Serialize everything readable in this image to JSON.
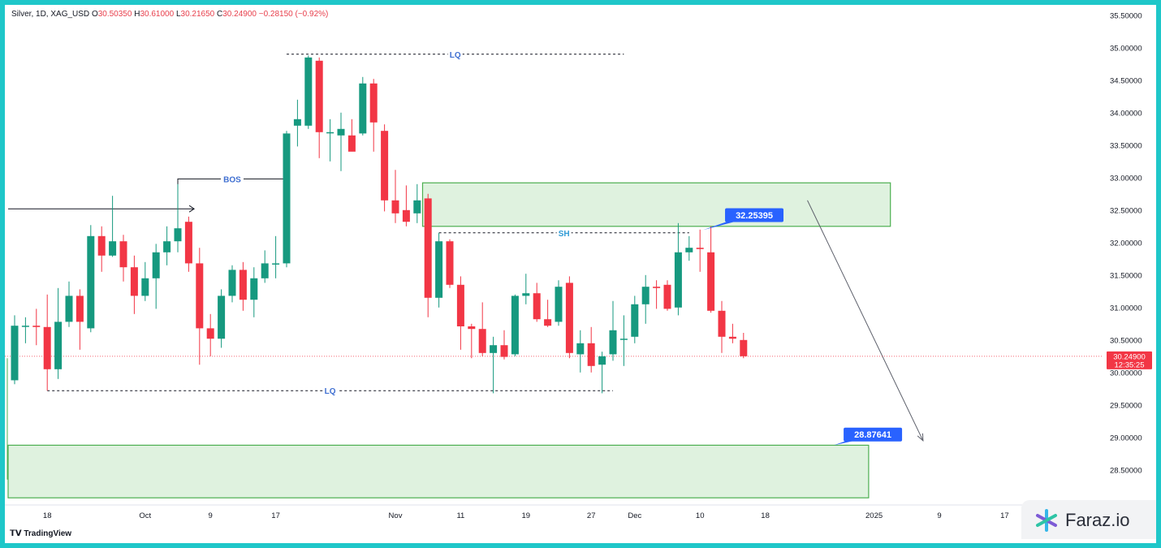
{
  "header": {
    "symbol": "Silver, 1D, XAG_USD",
    "open_label": "O",
    "open": "30.50350",
    "high_label": "H",
    "high": "30.61000",
    "low_label": "L",
    "low": "30.21650",
    "close_label": "C",
    "close": "30.24900",
    "change": "−0.28150 (−0.92%)"
  },
  "branding": {
    "tradingview": "TradingView",
    "watermark": "Faraz.io"
  },
  "colors": {
    "up": "#16997f",
    "down": "#f23645",
    "zone_fill": "#dff2df",
    "zone_border": "#4caf50",
    "label_bg": "#2962ff",
    "price_line": "#f23645"
  },
  "chart_data": {
    "type": "candlestick",
    "yaxis": {
      "min": 28.3,
      "max": 35.6,
      "ticks": [
        "35.50000",
        "35.00000",
        "34.50000",
        "34.00000",
        "33.50000",
        "33.00000",
        "32.50000",
        "32.00000",
        "31.50000",
        "31.00000",
        "30.50000",
        "30.00000",
        "29.50000",
        "29.00000",
        "28.50000"
      ]
    },
    "xaxis": {
      "ticks": [
        {
          "label": "18",
          "i": 3
        },
        {
          "label": "Oct",
          "i": 12
        },
        {
          "label": "9",
          "i": 18
        },
        {
          "label": "17",
          "i": 24
        },
        {
          "label": "Nov",
          "i": 35
        },
        {
          "label": "11",
          "i": 41
        },
        {
          "label": "19",
          "i": 47
        },
        {
          "label": "27",
          "i": 53
        },
        {
          "label": "Dec",
          "i": 57
        },
        {
          "label": "10",
          "i": 63
        },
        {
          "label": "18",
          "i": 69
        },
        {
          "label": "2025",
          "i": 79
        },
        {
          "label": "9",
          "i": 85
        },
        {
          "label": "17",
          "i": 91
        }
      ]
    },
    "candles": [
      {
        "o": 29.88,
        "h": 30.88,
        "l": 29.82,
        "c": 30.72
      },
      {
        "o": 30.72,
        "h": 30.85,
        "l": 30.45,
        "c": 30.72
      },
      {
        "o": 30.72,
        "h": 30.98,
        "l": 30.42,
        "c": 30.7
      },
      {
        "o": 30.7,
        "h": 31.2,
        "l": 29.72,
        "c": 30.05
      },
      {
        "o": 30.05,
        "h": 31.3,
        "l": 29.9,
        "c": 30.78
      },
      {
        "o": 30.78,
        "h": 31.4,
        "l": 30.7,
        "c": 31.18
      },
      {
        "o": 31.18,
        "h": 31.28,
        "l": 30.35,
        "c": 30.78
      },
      {
        "o": 30.68,
        "h": 32.27,
        "l": 30.62,
        "c": 32.1
      },
      {
        "o": 32.1,
        "h": 32.25,
        "l": 31.55,
        "c": 31.8
      },
      {
        "o": 31.8,
        "h": 32.72,
        "l": 31.78,
        "c": 32.02
      },
      {
        "o": 32.02,
        "h": 32.12,
        "l": 31.4,
        "c": 31.62
      },
      {
        "o": 31.62,
        "h": 31.8,
        "l": 30.9,
        "c": 31.18
      },
      {
        "o": 31.18,
        "h": 31.7,
        "l": 31.1,
        "c": 31.45
      },
      {
        "o": 31.45,
        "h": 31.98,
        "l": 30.98,
        "c": 31.85
      },
      {
        "o": 31.85,
        "h": 32.25,
        "l": 31.65,
        "c": 32.02
      },
      {
        "o": 32.02,
        "h": 32.9,
        "l": 31.85,
        "c": 32.22
      },
      {
        "o": 32.32,
        "h": 32.4,
        "l": 31.55,
        "c": 31.68
      },
      {
        "o": 31.68,
        "h": 31.92,
        "l": 30.12,
        "c": 30.68
      },
      {
        "o": 30.68,
        "h": 30.9,
        "l": 30.25,
        "c": 30.52
      },
      {
        "o": 30.52,
        "h": 31.28,
        "l": 30.38,
        "c": 31.18
      },
      {
        "o": 31.18,
        "h": 31.65,
        "l": 31.08,
        "c": 31.58
      },
      {
        "o": 31.58,
        "h": 31.7,
        "l": 30.95,
        "c": 31.12
      },
      {
        "o": 31.12,
        "h": 31.62,
        "l": 30.85,
        "c": 31.45
      },
      {
        "o": 31.45,
        "h": 31.88,
        "l": 31.38,
        "c": 31.68
      },
      {
        "o": 31.68,
        "h": 32.1,
        "l": 31.45,
        "c": 31.68
      },
      {
        "o": 31.68,
        "h": 33.72,
        "l": 31.62,
        "c": 33.68
      },
      {
        "o": 33.8,
        "h": 34.2,
        "l": 33.48,
        "c": 33.9
      },
      {
        "o": 33.8,
        "h": 34.88,
        "l": 33.75,
        "c": 34.85
      },
      {
        "o": 34.8,
        "h": 34.85,
        "l": 33.3,
        "c": 33.7
      },
      {
        "o": 33.7,
        "h": 33.9,
        "l": 33.25,
        "c": 33.7
      },
      {
        "o": 33.65,
        "h": 34.0,
        "l": 33.1,
        "c": 33.75
      },
      {
        "o": 33.65,
        "h": 33.9,
        "l": 33.45,
        "c": 33.4
      },
      {
        "o": 33.68,
        "h": 34.55,
        "l": 33.65,
        "c": 34.45
      },
      {
        "o": 34.45,
        "h": 34.52,
        "l": 33.4,
        "c": 33.85
      },
      {
        "o": 33.72,
        "h": 33.82,
        "l": 32.48,
        "c": 32.65
      },
      {
        "o": 32.65,
        "h": 33.12,
        "l": 32.3,
        "c": 32.45
      },
      {
        "o": 32.5,
        "h": 32.88,
        "l": 32.25,
        "c": 32.32
      },
      {
        "o": 32.45,
        "h": 32.9,
        "l": 32.3,
        "c": 32.65
      },
      {
        "o": 32.68,
        "h": 32.75,
        "l": 30.85,
        "c": 31.15
      },
      {
        "o": 31.15,
        "h": 32.15,
        "l": 31.0,
        "c": 32.02
      },
      {
        "o": 32.02,
        "h": 32.05,
        "l": 31.3,
        "c": 31.35
      },
      {
        "o": 31.35,
        "h": 31.48,
        "l": 30.35,
        "c": 30.71
      },
      {
        "o": 30.71,
        "h": 30.75,
        "l": 30.22,
        "c": 30.67
      },
      {
        "o": 30.67,
        "h": 31.08,
        "l": 30.25,
        "c": 30.3
      },
      {
        "o": 30.3,
        "h": 30.55,
        "l": 29.68,
        "c": 30.42
      },
      {
        "o": 30.42,
        "h": 30.65,
        "l": 30.2,
        "c": 30.24
      },
      {
        "o": 30.28,
        "h": 31.2,
        "l": 30.25,
        "c": 31.18
      },
      {
        "o": 31.18,
        "h": 31.52,
        "l": 31.05,
        "c": 31.22
      },
      {
        "o": 31.22,
        "h": 31.38,
        "l": 30.78,
        "c": 30.82
      },
      {
        "o": 30.82,
        "h": 31.12,
        "l": 30.7,
        "c": 30.72
      },
      {
        "o": 30.78,
        "h": 31.42,
        "l": 30.72,
        "c": 31.32
      },
      {
        "o": 31.38,
        "h": 31.48,
        "l": 30.22,
        "c": 30.3
      },
      {
        "o": 30.28,
        "h": 30.65,
        "l": 30.0,
        "c": 30.45
      },
      {
        "o": 30.45,
        "h": 30.7,
        "l": 30.0,
        "c": 30.1
      },
      {
        "o": 30.12,
        "h": 30.32,
        "l": 29.68,
        "c": 30.25
      },
      {
        "o": 30.28,
        "h": 31.1,
        "l": 30.18,
        "c": 30.65
      },
      {
        "o": 30.52,
        "h": 30.88,
        "l": 30.1,
        "c": 30.52
      },
      {
        "o": 30.55,
        "h": 31.18,
        "l": 30.45,
        "c": 31.05
      },
      {
        "o": 31.05,
        "h": 31.5,
        "l": 30.75,
        "c": 31.32
      },
      {
        "o": 31.32,
        "h": 31.42,
        "l": 30.98,
        "c": 31.3
      },
      {
        "o": 31.35,
        "h": 31.42,
        "l": 30.95,
        "c": 30.98
      },
      {
        "o": 31.0,
        "h": 32.3,
        "l": 30.88,
        "c": 31.85
      },
      {
        "o": 31.85,
        "h": 32.1,
        "l": 31.72,
        "c": 31.92
      },
      {
        "o": 31.92,
        "h": 32.2,
        "l": 31.55,
        "c": 31.9
      },
      {
        "o": 31.85,
        "h": 32.25,
        "l": 30.92,
        "c": 30.95
      },
      {
        "o": 30.95,
        "h": 31.1,
        "l": 30.3,
        "c": 30.55
      },
      {
        "o": 30.55,
        "h": 30.75,
        "l": 30.45,
        "c": 30.52
      },
      {
        "o": 30.5,
        "h": 30.61,
        "l": 30.22,
        "c": 30.25
      }
    ],
    "current_price": {
      "value": 30.249,
      "label": "30.24900",
      "timer": "12:35:25"
    },
    "annotations": {
      "lq_top": {
        "label": "LQ",
        "price": 34.9,
        "from": 25,
        "to": 56
      },
      "lq_bottom": {
        "label": "LQ",
        "price": 29.72,
        "from": 3,
        "to": 55
      },
      "sh": {
        "label": "SH",
        "price": 32.15,
        "from": 39,
        "to": 62
      },
      "bos": {
        "label": "BOS",
        "price": 32.98,
        "from": 15,
        "to": 25
      },
      "supply_zone": {
        "top": 32.92,
        "bottom": 32.25,
        "from": 37.5,
        "to": 80.5
      },
      "demand_zone": {
        "top": 28.88,
        "bottom": 28.07,
        "from": -1,
        "to": 78.5
      },
      "label_high": {
        "text": "32.25395",
        "price": 32.254
      },
      "label_target": {
        "text": "28.87641",
        "price": 28.876
      },
      "arrow_left": {
        "price": 32.52
      },
      "projection": {
        "from_price": 32.65,
        "to_price": 28.95,
        "from": 72.5,
        "to": 83.5
      }
    }
  }
}
